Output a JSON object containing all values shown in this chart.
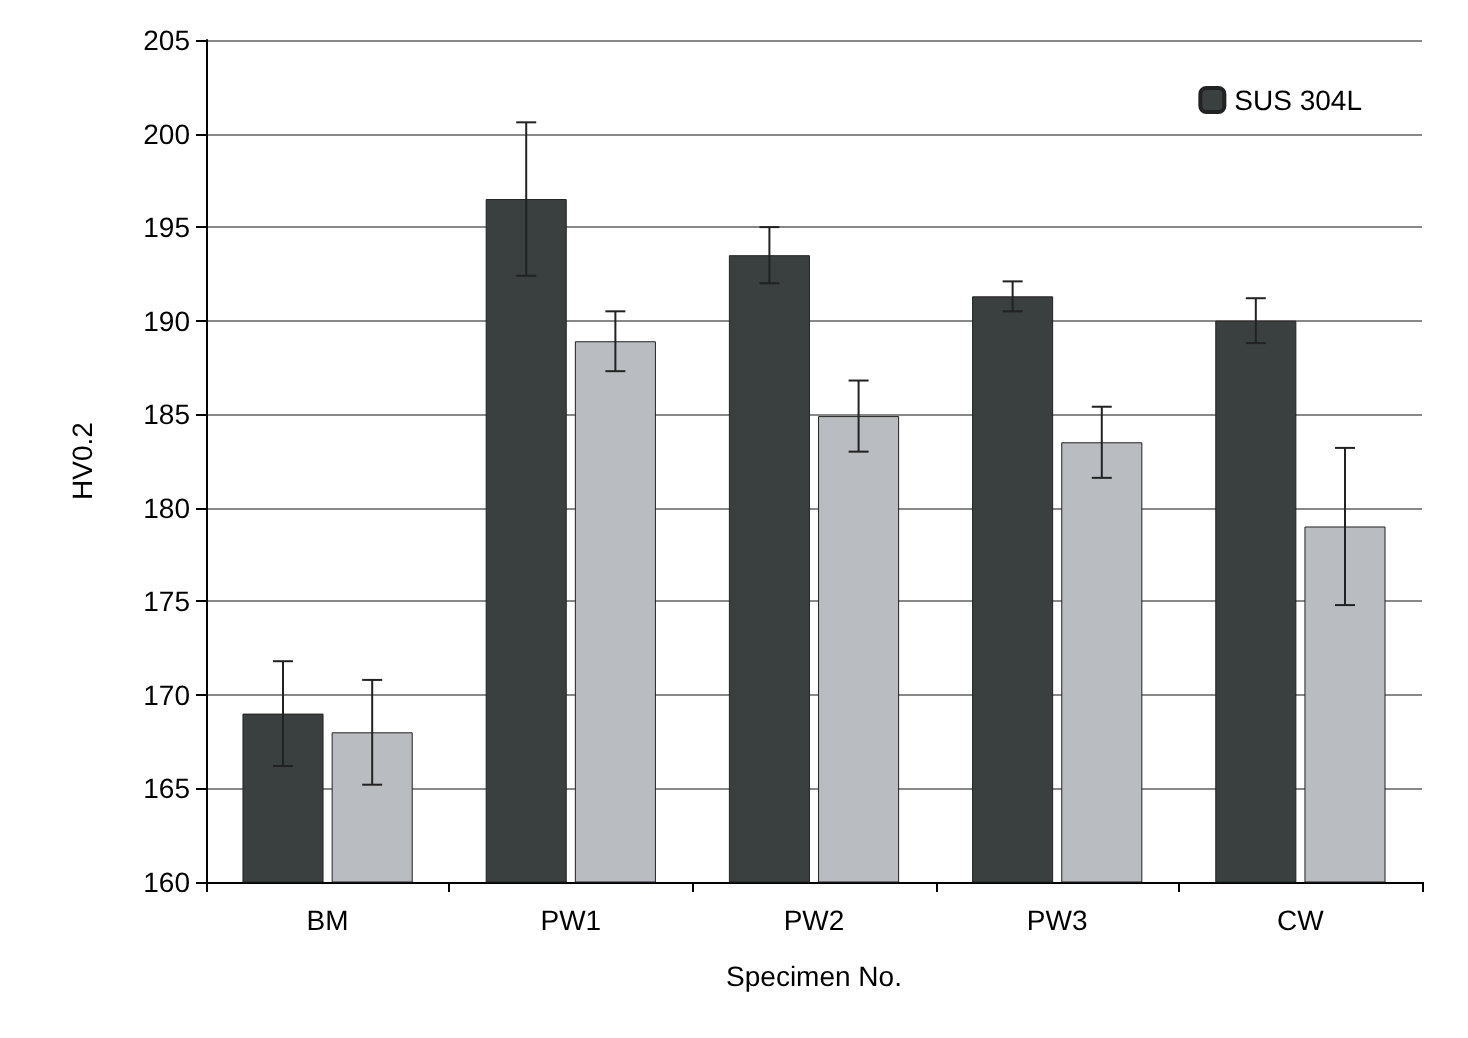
{
  "chart_data": {
    "type": "bar",
    "xlabel": "Specimen No.",
    "ylabel": "HV0.2",
    "categories": [
      "BM",
      "PW1",
      "PW2",
      "PW3",
      "CW"
    ],
    "series": [
      {
        "name": "SUS 304L",
        "color": "#3a3f3f",
        "values": [
          169,
          196.5,
          193.5,
          191.3,
          190
        ],
        "errors": [
          2.8,
          4.1,
          1.5,
          0.8,
          1.2
        ]
      },
      {
        "color": "#b9bdc1",
        "values": [
          168,
          188.9,
          184.9,
          183.5,
          179
        ],
        "errors": [
          2.8,
          1.6,
          1.9,
          1.9,
          4.2
        ]
      }
    ],
    "ylim": [
      160,
      205
    ],
    "yticks": [
      160,
      165,
      170,
      175,
      180,
      185,
      190,
      195,
      200,
      205
    ],
    "grid": "y",
    "legend": "top right"
  }
}
